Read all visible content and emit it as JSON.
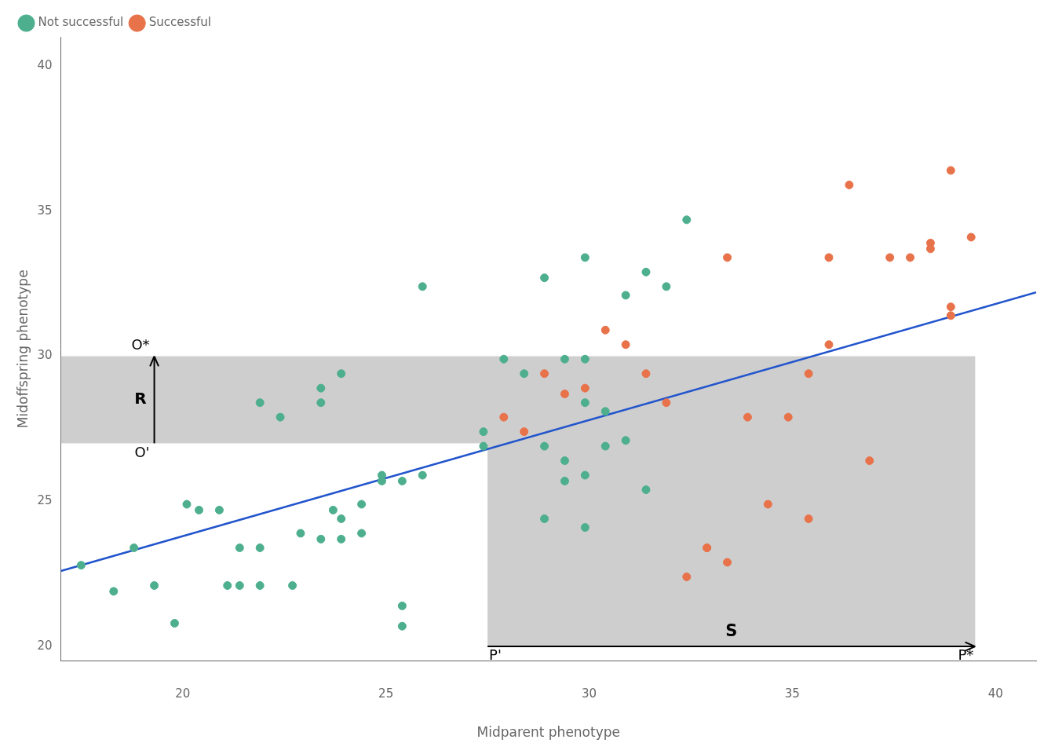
{
  "chart_data": {
    "type": "scatter",
    "xlabel": "Midparent phenotype",
    "ylabel": "Midoffspring phenotype",
    "xlim": [
      17,
      41
    ],
    "ylim": [
      19.5,
      41
    ],
    "xticks": [
      20,
      25,
      30,
      35,
      40
    ],
    "yticks": [
      20,
      25,
      30,
      35,
      40
    ],
    "grid": false,
    "legend": "upper left",
    "series": [
      {
        "name": "Not successful",
        "color": "#4DAF8D",
        "x": [
          17.5,
          18.3,
          18.8,
          19.3,
          19.8,
          20.1,
          20.4,
          20.9,
          21.1,
          21.4,
          21.4,
          21.9,
          21.9,
          22.4,
          22.7,
          22.9,
          23.4,
          23.7,
          23.9,
          23.9,
          24.4,
          24.4,
          24.9,
          24.9,
          25.4,
          25.4,
          25.4,
          25.9,
          21.9,
          23.4,
          23.4,
          23.9,
          25.9,
          27.4,
          27.4,
          27.9,
          28.4,
          28.9,
          29.4,
          29.9,
          29.9,
          29.9,
          30.4,
          30.9,
          31.4,
          31.9,
          32.4,
          28.9,
          29.4,
          29.9,
          30.4,
          30.9,
          28.9,
          29.4,
          29.9,
          31.4
        ],
        "values": [
          22.8,
          21.9,
          23.4,
          22.1,
          20.8,
          24.9,
          24.7,
          24.7,
          22.1,
          22.1,
          23.4,
          22.1,
          23.4,
          27.9,
          22.1,
          23.9,
          23.7,
          24.7,
          23.7,
          24.4,
          23.9,
          24.9,
          25.7,
          25.9,
          25.7,
          21.4,
          20.7,
          25.9,
          28.4,
          28.4,
          28.9,
          29.4,
          32.4,
          27.4,
          26.9,
          29.9,
          29.4,
          32.7,
          29.9,
          28.4,
          29.9,
          33.4,
          28.1,
          32.1,
          32.9,
          32.4,
          34.7,
          26.9,
          26.4,
          25.9,
          26.9,
          27.1,
          24.4,
          25.7,
          24.1,
          25.4
        ]
      },
      {
        "name": "Successful",
        "color": "#E8724A",
        "x": [
          27.9,
          28.4,
          28.9,
          29.4,
          29.9,
          30.4,
          30.9,
          31.4,
          31.9,
          32.4,
          32.9,
          32.9,
          33.4,
          33.4,
          33.9,
          34.4,
          34.9,
          35.4,
          35.4,
          35.9,
          36.4,
          36.9,
          37.4,
          37.9,
          38.4,
          38.4,
          38.9,
          38.9,
          38.9,
          39.4,
          35.9
        ],
        "values": [
          27.9,
          27.4,
          29.4,
          28.7,
          28.9,
          30.9,
          30.4,
          29.4,
          28.4,
          22.4,
          23.4,
          23.4,
          22.9,
          33.4,
          27.9,
          24.9,
          27.9,
          29.4,
          24.4,
          33.4,
          35.9,
          26.4,
          33.4,
          33.4,
          33.9,
          33.7,
          31.4,
          31.7,
          36.4,
          34.1,
          30.4
        ]
      },
      {
        "type": "line",
        "color": "#2255CC",
        "x": [
          17,
          41
        ],
        "values": [
          22.6,
          32.2
        ]
      }
    ],
    "shaded_regions": [
      {
        "x": [
          17,
          27.5
        ],
        "y": [
          27,
          30
        ],
        "color": "#BEBEBE"
      },
      {
        "x": [
          27.5,
          39.5
        ],
        "y": [
          20,
          30
        ],
        "color": "#BEBEBE"
      }
    ],
    "annotations": [
      {
        "label": "R",
        "start_label": "O'",
        "end_label": "O*",
        "from": [
          19.3,
          27
        ],
        "to": [
          19.3,
          30
        ]
      },
      {
        "label": "S",
        "start_label": "P'",
        "end_label": "P*",
        "from": [
          27.5,
          20
        ],
        "to": [
          39.5,
          20
        ]
      }
    ]
  }
}
